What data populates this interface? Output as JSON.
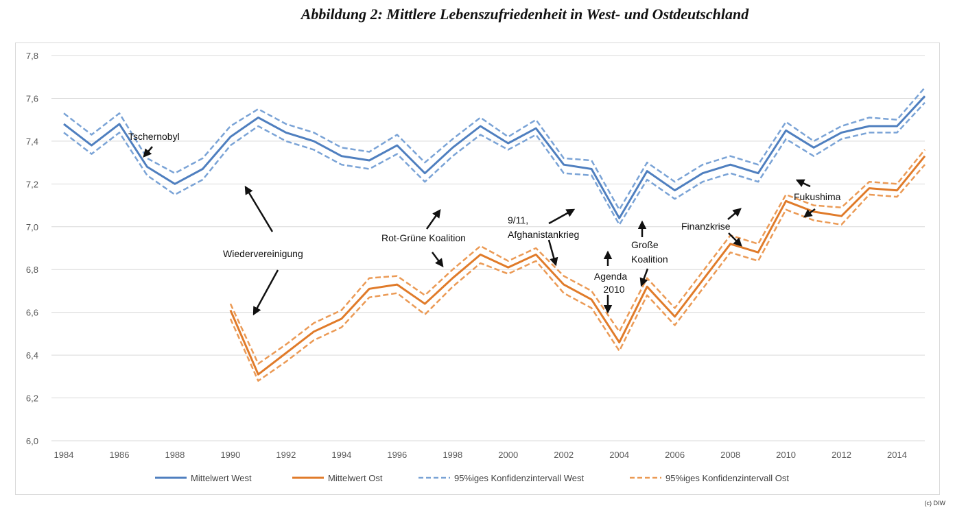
{
  "title": "Abbildung 2:  Mittlere Lebenszufriedenheit in West- und Ostdeutschland",
  "credit": "(c) DIW",
  "chart_data": {
    "type": "line",
    "title": "Abbildung 2:  Mittlere Lebenszufriedenheit in West- und Ostdeutschland",
    "xlabel": "",
    "ylabel": "",
    "ylim": [
      6.0,
      7.8
    ],
    "xlim": [
      1984,
      2015
    ],
    "grid": true,
    "legend": "bottom",
    "y_ticks": [
      "6,0",
      "6,2",
      "6,4",
      "6,6",
      "6,8",
      "7,0",
      "7,2",
      "7,4",
      "7,6",
      "7,8"
    ],
    "x_ticks": [
      "1984",
      "1986",
      "1988",
      "1990",
      "1992",
      "1994",
      "1996",
      "1998",
      "2000",
      "2002",
      "2004",
      "2006",
      "2008",
      "2010",
      "2012",
      "2014"
    ],
    "series": [
      {
        "name": "Mittelwert West",
        "color": "#4f7fbf",
        "style": "solid",
        "x": [
          1984,
          1985,
          1986,
          1987,
          1988,
          1989,
          1990,
          1991,
          1992,
          1993,
          1994,
          1995,
          1996,
          1997,
          1998,
          1999,
          2000,
          2001,
          2002,
          2003,
          2004,
          2005,
          2006,
          2007,
          2008,
          2009,
          2010,
          2011,
          2012,
          2013,
          2014,
          2015
        ],
        "values": [
          7.48,
          7.38,
          7.48,
          7.28,
          7.2,
          7.27,
          7.42,
          7.51,
          7.44,
          7.4,
          7.33,
          7.31,
          7.38,
          7.25,
          7.37,
          7.47,
          7.39,
          7.46,
          7.29,
          7.27,
          7.04,
          7.26,
          7.17,
          7.25,
          7.29,
          7.25,
          7.45,
          7.37,
          7.44,
          7.47,
          7.47,
          7.61
        ]
      },
      {
        "name": "Mittelwert Ost",
        "color": "#e07b2a",
        "style": "solid",
        "x": [
          1990,
          1991,
          1992,
          1993,
          1994,
          1995,
          1996,
          1997,
          1998,
          1999,
          2000,
          2001,
          2002,
          2003,
          2004,
          2005,
          2006,
          2007,
          2008,
          2009,
          2010,
          2011,
          2012,
          2013,
          2014,
          2015
        ],
        "values": [
          6.61,
          6.31,
          6.41,
          6.51,
          6.57,
          6.71,
          6.73,
          6.64,
          6.76,
          6.87,
          6.81,
          6.87,
          6.73,
          6.66,
          6.46,
          6.72,
          6.58,
          6.75,
          6.92,
          6.88,
          7.12,
          7.07,
          7.05,
          7.18,
          7.17,
          7.33
        ]
      },
      {
        "name": "95%iges Konfidenzintervall West",
        "color": "#7aa3d6",
        "style": "dashed",
        "x": [
          1984,
          1985,
          1986,
          1987,
          1988,
          1989,
          1990,
          1991,
          1992,
          1993,
          1994,
          1995,
          1996,
          1997,
          1998,
          1999,
          2000,
          2001,
          2002,
          2003,
          2004,
          2005,
          2006,
          2007,
          2008,
          2009,
          2010,
          2011,
          2012,
          2013,
          2014,
          2015
        ],
        "upper": [
          7.53,
          7.43,
          7.53,
          7.32,
          7.25,
          7.32,
          7.47,
          7.55,
          7.48,
          7.44,
          7.37,
          7.35,
          7.43,
          7.3,
          7.41,
          7.51,
          7.42,
          7.5,
          7.32,
          7.31,
          7.08,
          7.3,
          7.21,
          7.29,
          7.33,
          7.29,
          7.49,
          7.4,
          7.47,
          7.51,
          7.5,
          7.65
        ],
        "lower": [
          7.44,
          7.34,
          7.44,
          7.24,
          7.15,
          7.22,
          7.38,
          7.47,
          7.4,
          7.36,
          7.29,
          7.27,
          7.34,
          7.21,
          7.33,
          7.43,
          7.36,
          7.43,
          7.25,
          7.24,
          7.01,
          7.22,
          7.13,
          7.21,
          7.25,
          7.21,
          7.41,
          7.33,
          7.41,
          7.44,
          7.44,
          7.58
        ]
      },
      {
        "name": "95%iges Konfidenzintervall Ost",
        "color": "#eb9a55",
        "style": "dashed",
        "x": [
          1990,
          1991,
          1992,
          1993,
          1994,
          1995,
          1996,
          1997,
          1998,
          1999,
          2000,
          2001,
          2002,
          2003,
          2004,
          2005,
          2006,
          2007,
          2008,
          2009,
          2010,
          2011,
          2012,
          2013,
          2014,
          2015
        ],
        "upper": [
          6.64,
          6.36,
          6.45,
          6.55,
          6.61,
          6.76,
          6.77,
          6.68,
          6.8,
          6.91,
          6.84,
          6.9,
          6.77,
          6.7,
          6.51,
          6.76,
          6.62,
          6.79,
          6.96,
          6.92,
          7.15,
          7.1,
          7.09,
          7.21,
          7.2,
          7.36
        ],
        "lower": [
          6.57,
          6.28,
          6.37,
          6.47,
          6.53,
          6.67,
          6.69,
          6.59,
          6.72,
          6.83,
          6.78,
          6.84,
          6.69,
          6.62,
          6.42,
          6.68,
          6.54,
          6.71,
          6.88,
          6.84,
          7.08,
          7.03,
          7.01,
          7.15,
          7.14,
          7.29
        ]
      }
    ],
    "annotations": [
      {
        "text": "Tschernobyl",
        "year": 1987
      },
      {
        "text": "Wiedervereinigung",
        "year": 1990
      },
      {
        "text": "Rot-Grüne Koalition",
        "year": 1998
      },
      {
        "text": "9/11,",
        "year": 2001
      },
      {
        "text": "Afghanistankrieg",
        "year": 2001
      },
      {
        "text": "Agenda",
        "year": 2003
      },
      {
        "text": "2010",
        "year": 2003
      },
      {
        "text": "Große",
        "year": 2005
      },
      {
        "text": "Koalition",
        "year": 2005
      },
      {
        "text": "Finanzkrise",
        "year": 2008
      },
      {
        "text": "Fukushima",
        "year": 2011
      }
    ]
  }
}
